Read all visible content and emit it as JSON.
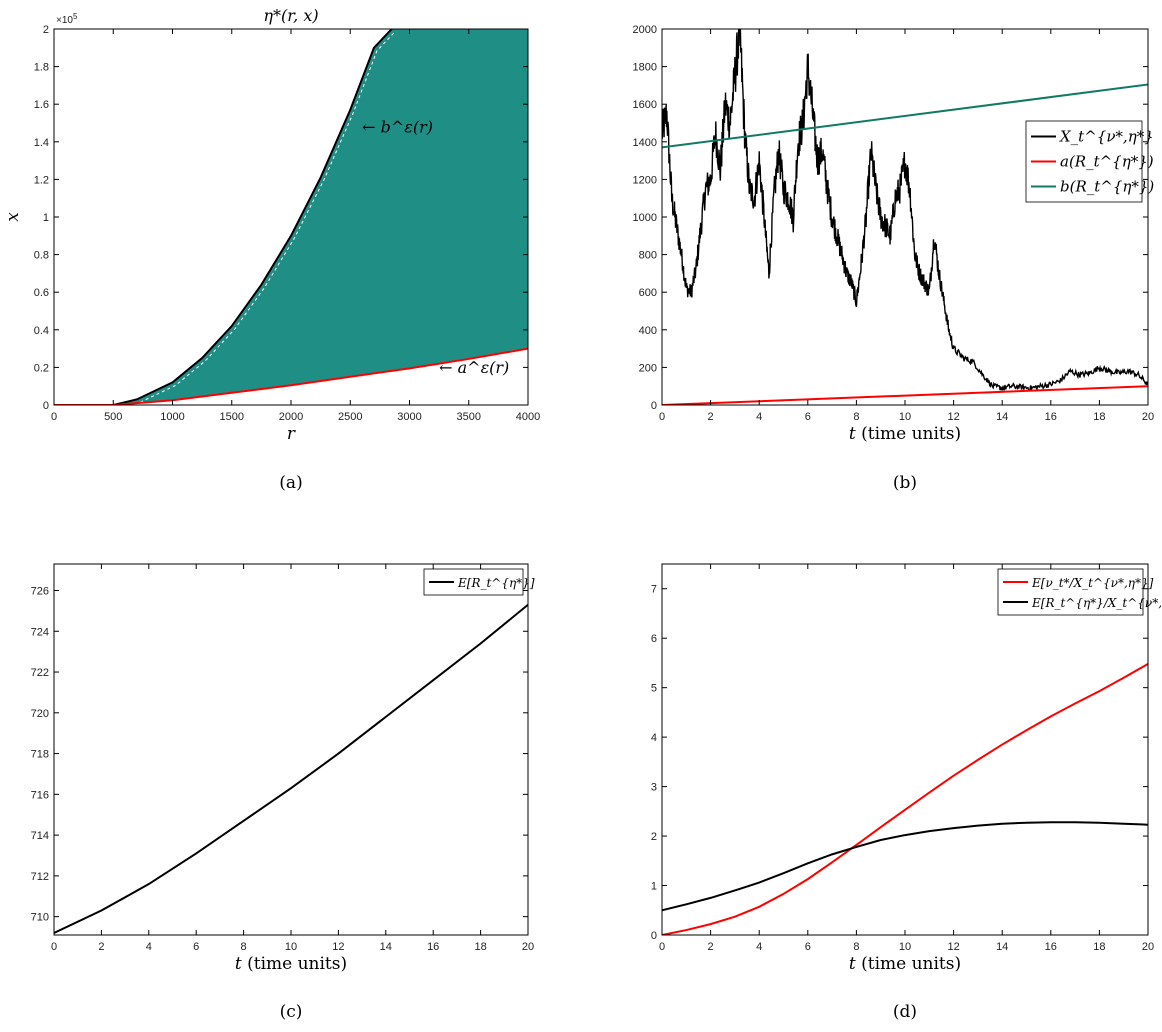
{
  "chart_data": [
    {
      "panel": "(a)",
      "type": "area",
      "title": "η*(r, x)",
      "xlabel": "r",
      "ylabel": "x",
      "xlim": [
        0,
        4000
      ],
      "ylim": [
        0,
        200000
      ],
      "y_exponent_label": "×10",
      "y_exponent_power": "5",
      "xticks": [
        "0",
        "500",
        "1000",
        "1500",
        "2000",
        "2500",
        "3000",
        "3500",
        "4000"
      ],
      "yticks": [
        "0",
        "0.2",
        "0.4",
        "0.6",
        "0.8",
        "1",
        "1.2",
        "1.4",
        "1.6",
        "1.8",
        "2"
      ],
      "series": [
        {
          "name": "b^ε(r)",
          "color": "#000000",
          "x": [
            0,
            500,
            700,
            1000,
            1250,
            1500,
            1750,
            2000,
            2250,
            2500,
            2700,
            2850
          ],
          "y": [
            0,
            0,
            3000,
            12000,
            25000,
            42000,
            64000,
            90000,
            121000,
            157000,
            190000,
            200000
          ]
        },
        {
          "name": "a^ε(r)",
          "color": "#ff0000",
          "x": [
            0,
            500,
            1000,
            1500,
            2000,
            2500,
            3000,
            3500,
            4000
          ],
          "y": [
            0,
            0,
            2500,
            6500,
            10500,
            15000,
            19500,
            24500,
            30000
          ]
        }
      ],
      "fill_color": "#1f8f86",
      "annotations": [
        {
          "text": "← b^ε(r)",
          "x": 2600,
          "y": 145000
        },
        {
          "text": "← a^ε(r)",
          "x": 3250,
          "y": 17000
        }
      ]
    },
    {
      "panel": "(b)",
      "type": "line",
      "xlabel": "t (time units)",
      "ylabel": "",
      "xlim": [
        0,
        20
      ],
      "ylim": [
        0,
        2000
      ],
      "xticks": [
        "0",
        "2",
        "4",
        "6",
        "8",
        "10",
        "12",
        "14",
        "16",
        "18",
        "20"
      ],
      "yticks": [
        "0",
        "200",
        "400",
        "600",
        "800",
        "1000",
        "1200",
        "1400",
        "1600",
        "1800",
        "2000"
      ],
      "legend_position": "right",
      "series": [
        {
          "name": "X_t^{ν*,η*}",
          "color": "#000000",
          "x": [
            0,
            0.2,
            0.4,
            0.6,
            0.8,
            1.0,
            1.2,
            1.4,
            1.6,
            1.8,
            2.0,
            2.2,
            2.4,
            2.6,
            2.8,
            3.0,
            3.2,
            3.4,
            3.6,
            3.8,
            4.0,
            4.2,
            4.4,
            4.6,
            4.8,
            5.0,
            5.2,
            5.4,
            5.6,
            5.8,
            6.0,
            6.2,
            6.4,
            6.6,
            6.8,
            7.0,
            7.2,
            7.4,
            7.6,
            7.8,
            8.0,
            8.2,
            8.4,
            8.6,
            8.8,
            9.0,
            9.2,
            9.4,
            9.6,
            9.8,
            10.0,
            10.2,
            10.4,
            10.6,
            10.8,
            11.0,
            11.2,
            11.4,
            11.6,
            11.8,
            12.0,
            12.4,
            12.8,
            13.2,
            13.6,
            14.0,
            14.4,
            14.8,
            15.2,
            15.6,
            16.0,
            16.4,
            16.8,
            17.2,
            17.6,
            18.0,
            18.4,
            18.8,
            19.2,
            19.6,
            20.0
          ],
          "y": [
            1450,
            1550,
            1100,
            950,
            800,
            620,
            600,
            720,
            950,
            1150,
            1200,
            1450,
            1250,
            1600,
            1500,
            1750,
            2000,
            1450,
            1150,
            1100,
            1300,
            1000,
            700,
            1100,
            1350,
            1150,
            1100,
            1000,
            1400,
            1500,
            1800,
            1550,
            1300,
            1350,
            1150,
            1000,
            900,
            800,
            700,
            650,
            550,
            750,
            1000,
            1350,
            1150,
            1000,
            950,
            900,
            1100,
            1150,
            1300,
            1150,
            800,
            700,
            650,
            600,
            900,
            700,
            550,
            400,
            300,
            250,
            230,
            160,
            100,
            90,
            100,
            95,
            90,
            100,
            110,
            130,
            180,
            160,
            170,
            200,
            180,
            170,
            180,
            160,
            110
          ]
        },
        {
          "name": "a(R_t^{η*})",
          "color": "#ff0000",
          "x": [
            0,
            20
          ],
          "y": [
            0,
            100
          ]
        },
        {
          "name": "b(R_t^{η*})",
          "color": "#117a65",
          "x": [
            0,
            20
          ],
          "y": [
            1370,
            1705
          ]
        }
      ]
    },
    {
      "panel": "(c)",
      "type": "line",
      "xlabel": "t (time units)",
      "ylabel": "",
      "xlim": [
        0,
        20
      ],
      "ylim": [
        709.1,
        727.3
      ],
      "xticks": [
        "0",
        "2",
        "4",
        "6",
        "8",
        "10",
        "12",
        "14",
        "16",
        "18",
        "20"
      ],
      "yticks": [
        "710",
        "712",
        "714",
        "716",
        "718",
        "720",
        "722",
        "724",
        "726"
      ],
      "legend_position": "top-right",
      "series": [
        {
          "name": "E[R_t^{η*}]",
          "color": "#000000",
          "x": [
            0,
            2,
            4,
            6,
            8,
            10,
            12,
            14,
            16,
            18,
            20
          ],
          "y": [
            709.2,
            710.3,
            711.6,
            713.1,
            714.7,
            716.3,
            718.0,
            719.8,
            721.6,
            723.4,
            725.3
          ]
        }
      ]
    },
    {
      "panel": "(d)",
      "type": "line",
      "xlabel": "t (time units)",
      "ylabel": "",
      "xlim": [
        0,
        20
      ],
      "ylim": [
        0,
        7.5
      ],
      "xticks": [
        "0",
        "2",
        "4",
        "6",
        "8",
        "10",
        "12",
        "14",
        "16",
        "18",
        "20"
      ],
      "yticks": [
        "0",
        "1",
        "2",
        "3",
        "4",
        "5",
        "6",
        "7"
      ],
      "legend_position": "top-right",
      "series": [
        {
          "name": "E[ν_t*/X_t^{ν*,η*}]",
          "color": "#ff0000",
          "x": [
            0,
            1,
            2,
            3,
            4,
            5,
            6,
            7,
            8,
            9,
            10,
            11,
            12,
            13,
            14,
            15,
            16,
            17,
            18,
            19,
            20
          ],
          "y": [
            0,
            0.1,
            0.22,
            0.37,
            0.57,
            0.83,
            1.13,
            1.47,
            1.82,
            2.18,
            2.53,
            2.88,
            3.22,
            3.54,
            3.85,
            4.14,
            4.42,
            4.68,
            4.93,
            5.2,
            5.48
          ]
        },
        {
          "name": "E[R_t^{η*}/X_t^{ν*,η*}]",
          "color": "#000000",
          "x": [
            0,
            1,
            2,
            3,
            4,
            5,
            6,
            7,
            8,
            9,
            10,
            11,
            12,
            13,
            14,
            15,
            16,
            17,
            18,
            19,
            20
          ],
          "y": [
            0.5,
            0.62,
            0.75,
            0.9,
            1.06,
            1.25,
            1.45,
            1.63,
            1.78,
            1.92,
            2.02,
            2.1,
            2.16,
            2.21,
            2.25,
            2.27,
            2.28,
            2.28,
            2.27,
            2.25,
            2.23
          ]
        }
      ]
    }
  ],
  "captions": [
    "(a)",
    "(b)",
    "(c)",
    "(d)"
  ]
}
